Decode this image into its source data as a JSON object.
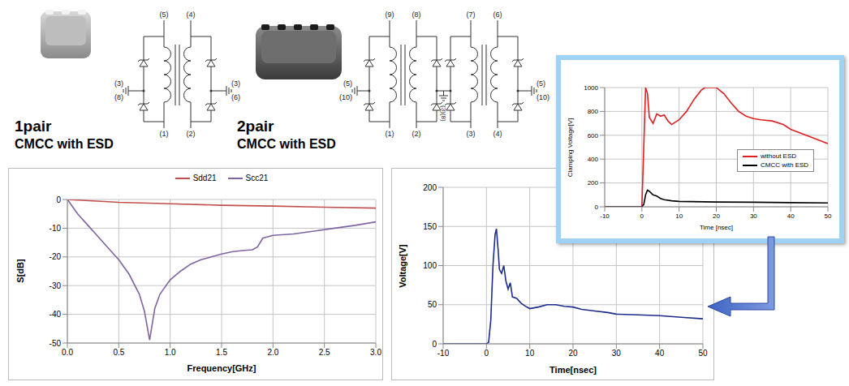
{
  "products": [
    {
      "name": "1pair",
      "label": "CMCC with ESD",
      "pins": {
        "top": [
          "(5)",
          "(4)"
        ],
        "bottom": [
          "(1)",
          "(2)"
        ],
        "left": [
          "(3)",
          "(8)"
        ],
        "right": [
          "(3)",
          "(6)"
        ]
      }
    },
    {
      "name": "2pair",
      "label": "CMCC with ESD",
      "pins": {
        "top": [
          "(9)",
          "(8)",
          "(7)",
          "(6)"
        ],
        "bottom": [
          "(1)",
          "(2)",
          "(3)",
          "(4)"
        ],
        "left": [
          "(5)",
          "(10)"
        ],
        "middle": [
          "(3)",
          "(8)"
        ],
        "right": [
          "(5)",
          "(10)"
        ]
      }
    }
  ],
  "chart_data": [
    {
      "type": "line",
      "x_label": "Frequency[GHz]",
      "y_label": "S[dB]",
      "xlim": [
        0,
        3
      ],
      "xticks": [
        {
          "value": 0,
          "label": "0.0"
        },
        0.5,
        {
          "value": 1,
          "label": "1.0"
        },
        1.5,
        {
          "value": 2,
          "label": "2.0"
        },
        2.5,
        {
          "value": 3,
          "label": "3.0"
        }
      ],
      "ylim": [
        -50,
        0
      ],
      "yticks": [
        -50,
        -40,
        -30,
        -20,
        -10,
        0
      ],
      "grid": true,
      "legend": "top",
      "series": [
        {
          "name": "Sdd21",
          "color": "#c0504d",
          "x": [
            0,
            0.5,
            1,
            1.5,
            2,
            2.5,
            3
          ],
          "values": [
            0,
            -1,
            -1.5,
            -2,
            -2.3,
            -2.7,
            -3
          ]
        },
        {
          "name": "Scc21",
          "color": "#8064a2",
          "x": [
            0,
            0.1,
            0.2,
            0.3,
            0.4,
            0.5,
            0.6,
            0.7,
            0.75,
            0.8,
            0.85,
            0.9,
            1.0,
            1.1,
            1.2,
            1.3,
            1.4,
            1.5,
            1.6,
            1.7,
            1.8,
            1.85,
            1.9,
            2.0,
            2.2,
            2.4,
            2.6,
            2.8,
            3.0
          ],
          "values": [
            0,
            -5,
            -9,
            -13,
            -17,
            -21,
            -26,
            -33,
            -39,
            -49,
            -38,
            -33,
            -28,
            -25,
            -22.5,
            -21,
            -20,
            -19,
            -18.2,
            -17.8,
            -17.5,
            -16.5,
            -13.5,
            -12.5,
            -12,
            -11,
            -10,
            -9,
            -7.8
          ]
        }
      ]
    },
    {
      "type": "line",
      "x_label": "Time[nsec]",
      "y_label": "Voltage[V]",
      "xlim": [
        -10,
        50
      ],
      "xticks": [
        -10,
        0,
        10,
        20,
        30,
        40,
        50
      ],
      "ylim": [
        0,
        200
      ],
      "yticks": [
        0,
        50,
        100,
        150,
        200
      ],
      "grid": true,
      "series": [
        {
          "color": "#1c2c8c",
          "x": [
            -10,
            0,
            0.5,
            1,
            1.5,
            2,
            2.3,
            2.7,
            3,
            3.5,
            4,
            4.5,
            5,
            5.5,
            6,
            7,
            8,
            9,
            10,
            12,
            14,
            16,
            18,
            20,
            22,
            25,
            28,
            30,
            35,
            40,
            45,
            50
          ],
          "values": [
            0,
            0,
            2,
            30,
            100,
            140,
            147,
            120,
            95,
            90,
            100,
            80,
            70,
            78,
            60,
            58,
            52,
            48,
            45,
            47,
            50,
            50,
            48,
            47,
            44,
            42,
            40,
            38,
            37,
            36,
            34,
            32
          ]
        }
      ]
    },
    {
      "type": "line",
      "x_label": "Time [nsec]",
      "y_label": "Clamping Voltage[V]",
      "xlim": [
        -10,
        50
      ],
      "xticks": [
        -10,
        0,
        10,
        20,
        30,
        40,
        50
      ],
      "ylim": [
        0,
        1000
      ],
      "yticks": [
        0,
        200,
        400,
        600,
        800,
        1000
      ],
      "grid": true,
      "legend": "right",
      "series": [
        {
          "name": "without ESD",
          "color": "#e02020",
          "x": [
            -10,
            0,
            0.5,
            1,
            1.5,
            2,
            3,
            4,
            5,
            6,
            7,
            8,
            10,
            12,
            14,
            16,
            17,
            20,
            22,
            24,
            26,
            28,
            30,
            32,
            35,
            38,
            40,
            45,
            50
          ],
          "values": [
            0,
            0,
            500,
            1000,
            950,
            750,
            700,
            780,
            760,
            770,
            720,
            690,
            730,
            800,
            900,
            980,
            1000,
            1000,
            950,
            870,
            800,
            760,
            740,
            730,
            720,
            690,
            650,
            590,
            530
          ]
        },
        {
          "name": "CMCC with ESD",
          "color": "#000000",
          "x": [
            -10,
            0,
            0.5,
            1,
            1.5,
            2,
            3,
            4,
            5,
            6,
            8,
            10,
            20,
            30,
            40,
            50
          ],
          "values": [
            0,
            0,
            20,
            100,
            140,
            130,
            100,
            90,
            70,
            60,
            50,
            45,
            40,
            38,
            35,
            32
          ]
        }
      ]
    }
  ]
}
